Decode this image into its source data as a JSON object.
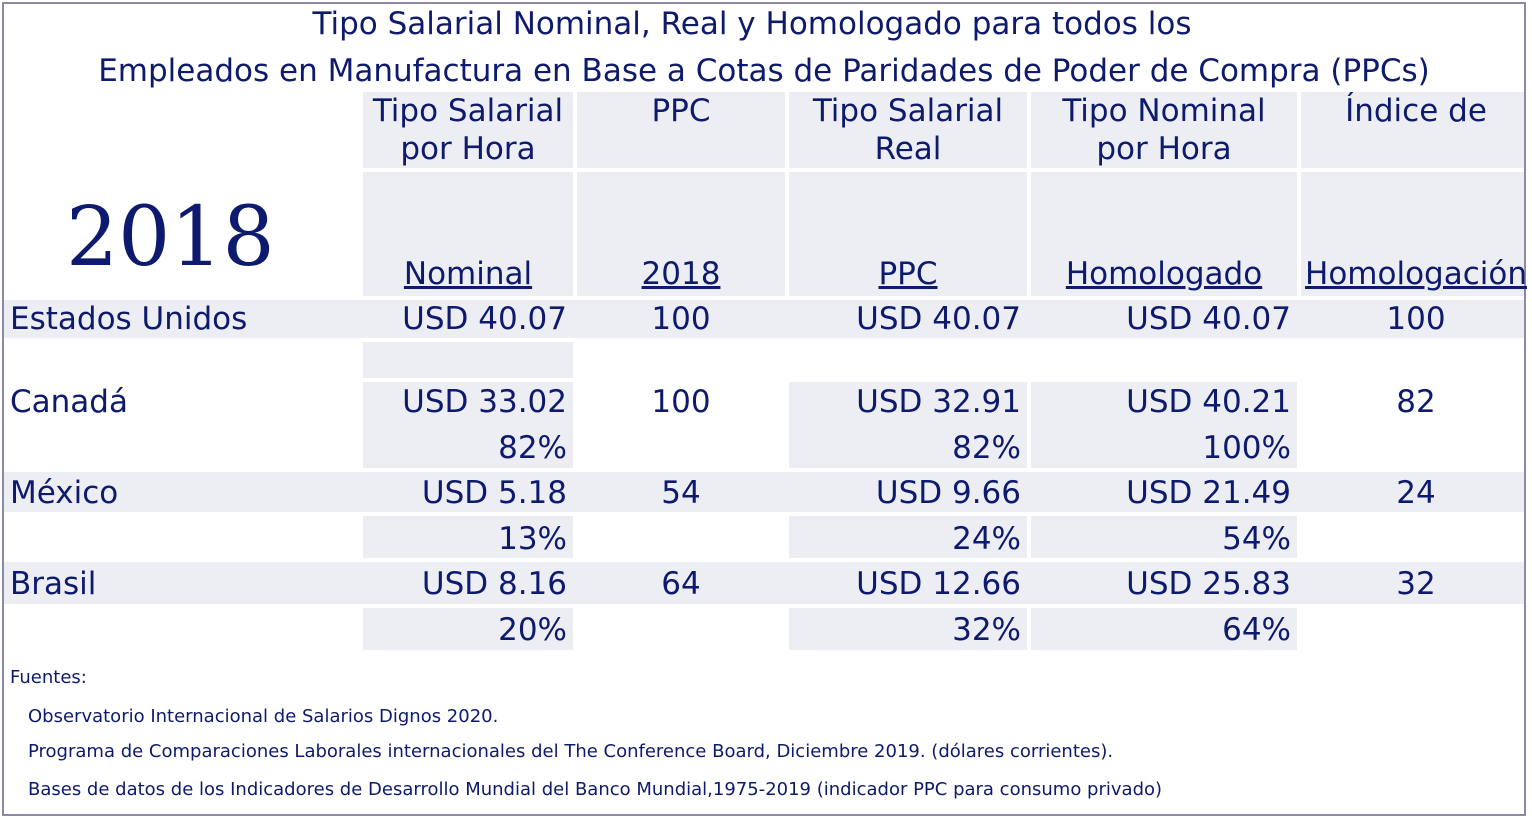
{
  "title": {
    "line1": "Tipo Salarial Nominal, Real y Homologado para todos los",
    "line2": "Empleados en Manufactura en Base a Cotas de Paridades de Poder de Compra (PPCs)"
  },
  "year": "2018",
  "columns": [
    {
      "line1": "Tipo Salarial",
      "line2": "por Hora",
      "sub": "Nominal"
    },
    {
      "line1": "PPC",
      "line2": "",
      "sub": "2018"
    },
    {
      "line1": "Tipo Salarial",
      "line2": "Real",
      "sub": "PPC"
    },
    {
      "line1": "Tipo Nominal",
      "line2": "por Hora",
      "sub": "Homologado"
    },
    {
      "line1": "Índice de",
      "line2": "",
      "sub": "Homologación"
    }
  ],
  "rows": [
    {
      "country": "Estados Unidos",
      "nominal": "USD 40.07",
      "ppc": "100",
      "real": "USD 40.07",
      "homologado": "USD 40.07",
      "indice": "100",
      "nominal_pct": "",
      "real_pct": "",
      "homologado_pct": ""
    },
    {
      "country": "Canadá",
      "nominal": "USD 33.02",
      "ppc": "100",
      "real": "USD 32.91",
      "homologado": "USD 40.21",
      "indice": "82",
      "nominal_pct": "82%",
      "real_pct": "82%",
      "homologado_pct": "100%"
    },
    {
      "country": "México",
      "nominal": "USD 5.18",
      "ppc": "54",
      "real": "USD 9.66",
      "homologado": "USD 21.49",
      "indice": "24",
      "nominal_pct": "13%",
      "real_pct": "24%",
      "homologado_pct": "54%"
    },
    {
      "country": "Brasil",
      "nominal": "USD 8.16",
      "ppc": "64",
      "real": "USD 12.66",
      "homologado": "USD 25.83",
      "indice": "32",
      "nominal_pct": "20%",
      "real_pct": "32%",
      "homologado_pct": "64%"
    }
  ],
  "sources": {
    "label": "Fuentes:",
    "items": [
      "Observatorio Internacional de Salarios Dignos 2020.",
      "Programa de Comparaciones Laborales internacionales del The Conference Board, Diciembre 2019. (dólares corrientes).",
      "Bases de datos de los Indicadores de Desarrollo Mundial del Banco Mundial,1975-2019 (indicador PPC para consumo privado)"
    ]
  }
}
